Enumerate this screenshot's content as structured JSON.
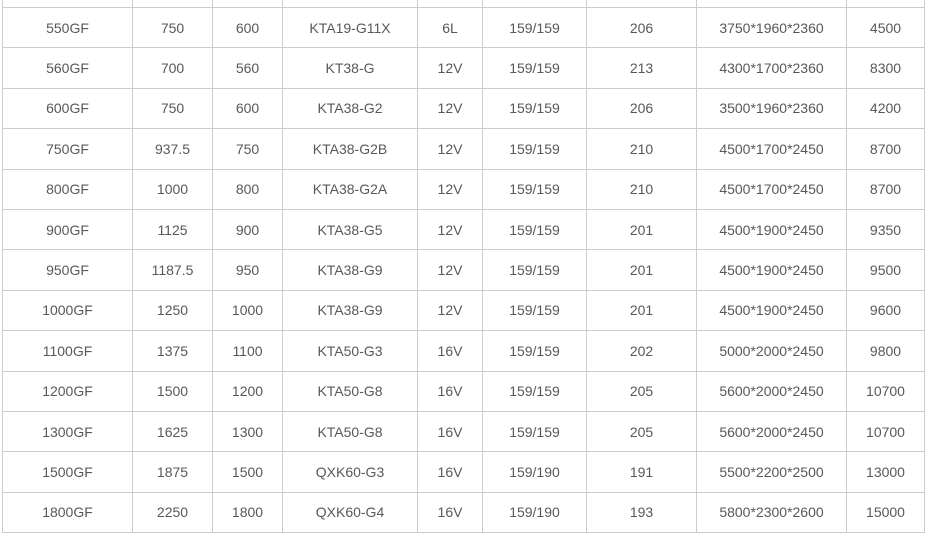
{
  "colors": {
    "border": "#cccccc",
    "text": "#58585a",
    "background": "#ffffff"
  },
  "table": {
    "rows": [
      [
        "550GF",
        "750",
        "600",
        "KTA19-G11X",
        "6L",
        "159/159",
        "206",
        "3750*1960*2360",
        "4500"
      ],
      [
        "560GF",
        "700",
        "560",
        "KT38-G",
        "12V",
        "159/159",
        "213",
        "4300*1700*2360",
        "8300"
      ],
      [
        "600GF",
        "750",
        "600",
        "KTA38-G2",
        "12V",
        "159/159",
        "206",
        "3500*1960*2360",
        "4200"
      ],
      [
        "750GF",
        "937.5",
        "750",
        "KTA38-G2B",
        "12V",
        "159/159",
        "210",
        "4500*1700*2450",
        "8700"
      ],
      [
        "800GF",
        "1000",
        "800",
        "KTA38-G2A",
        "12V",
        "159/159",
        "210",
        "4500*1700*2450",
        "8700"
      ],
      [
        "900GF",
        "1125",
        "900",
        "KTA38-G5",
        "12V",
        "159/159",
        "201",
        "4500*1900*2450",
        "9350"
      ],
      [
        "950GF",
        "1187.5",
        "950",
        "KTA38-G9",
        "12V",
        "159/159",
        "201",
        "4500*1900*2450",
        "9500"
      ],
      [
        "1000GF",
        "1250",
        "1000",
        "KTA38-G9",
        "12V",
        "159/159",
        "201",
        "4500*1900*2450",
        "9600"
      ],
      [
        "1100GF",
        "1375",
        "1100",
        "KTA50-G3",
        "16V",
        "159/159",
        "202",
        "5000*2000*2450",
        "9800"
      ],
      [
        "1200GF",
        "1500",
        "1200",
        "KTA50-G8",
        "16V",
        "159/159",
        "205",
        "5600*2000*2450",
        "10700"
      ],
      [
        "1300GF",
        "1625",
        "1300",
        "KTA50-G8",
        "16V",
        "159/159",
        "205",
        "5600*2000*2450",
        "10700"
      ],
      [
        "1500GF",
        "1875",
        "1500",
        "QXK60-G3",
        "16V",
        "159/190",
        "191",
        "5500*2200*2500",
        "13000"
      ],
      [
        "1800GF",
        "2250",
        "1800",
        "QXK60-G4",
        "16V",
        "159/190",
        "193",
        "5800*2300*2600",
        "15000"
      ]
    ]
  }
}
